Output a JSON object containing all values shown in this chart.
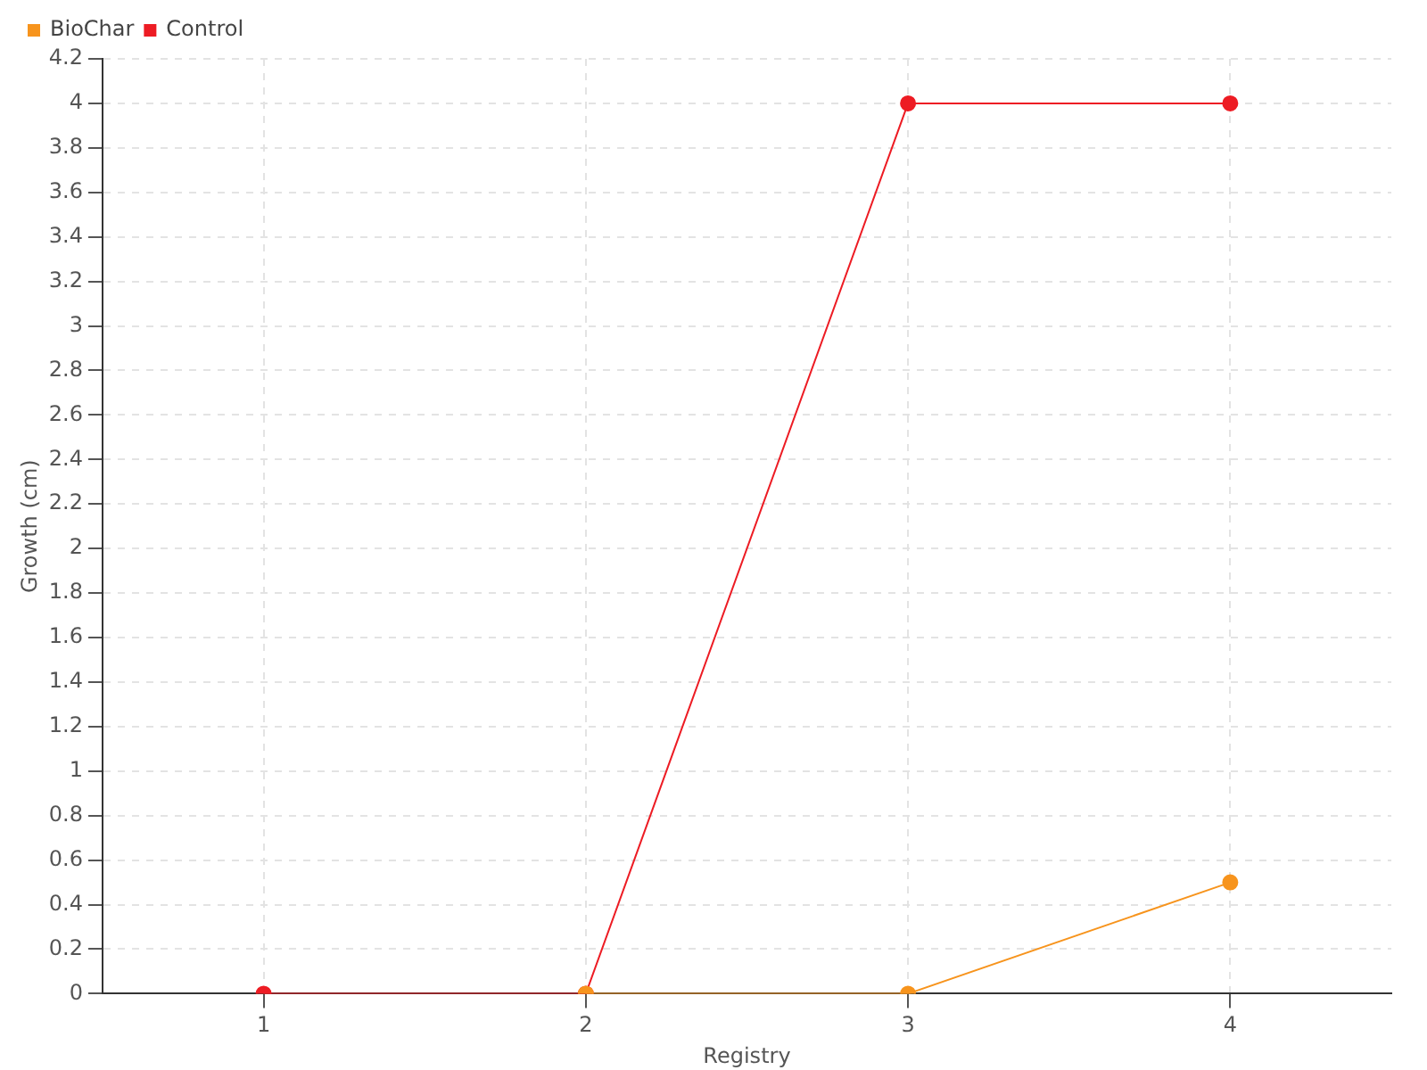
{
  "chart_data": {
    "type": "line",
    "xlabel": "Registry",
    "ylabel": "Growth (cm)",
    "x": [
      1,
      2,
      3,
      4
    ],
    "xlim": [
      0.5,
      4.5
    ],
    "xticks": [
      1,
      2,
      3,
      4
    ],
    "ylim": [
      0,
      4.2
    ],
    "yticks": [
      0,
      0.2,
      0.4,
      0.6,
      0.8,
      1,
      1.2,
      1.4,
      1.6,
      1.8,
      2,
      2.2,
      2.4,
      2.6,
      2.8,
      3,
      3.2,
      3.4,
      3.6,
      3.8,
      4,
      4.2
    ],
    "series": [
      {
        "name": "BioChar",
        "color": "#f7941d",
        "values": [
          null,
          0,
          0,
          0.5
        ]
      },
      {
        "name": "Control",
        "color": "#ed1c24",
        "values": [
          0,
          0,
          4,
          4
        ]
      }
    ],
    "grid": true,
    "legend": "top left",
    "marker": "circle",
    "line_style": "solid"
  }
}
